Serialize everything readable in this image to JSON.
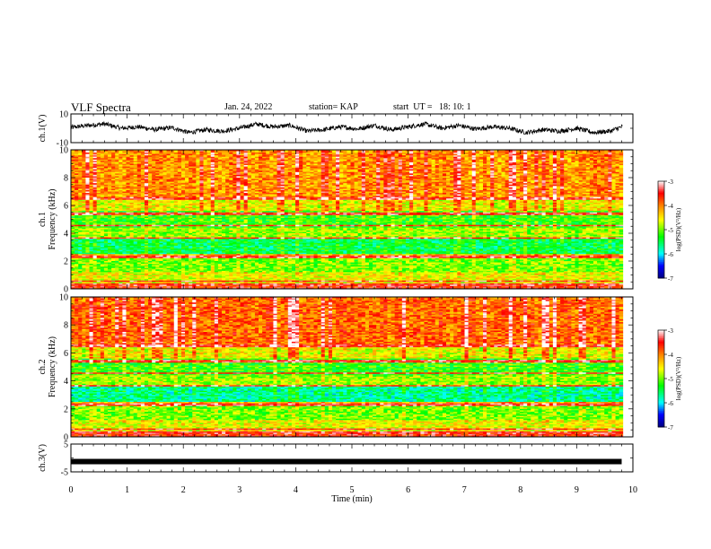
{
  "header": {
    "title": "VLF Spectra",
    "date": "Jan. 24, 2022",
    "station": "station= KAP",
    "start": "start  UT =   18: 10: 1"
  },
  "chart_data": [
    {
      "type": "line",
      "panel": "ch1-waveform",
      "ylabel": "ch.1(V)",
      "ylim": [
        -10,
        10
      ],
      "y_ticks": [
        "10",
        "-10"
      ],
      "xlim": [
        0,
        10
      ],
      "description_series": "noisy voltage trace oscillating roughly between -6 and 5 V",
      "series": [
        {
          "x": [
            0,
            0.3,
            0.6,
            0.9,
            1.2,
            1.5,
            1.8,
            2.1,
            2.4,
            2.7,
            3.0,
            3.3,
            3.6,
            3.9,
            4.2,
            4.5,
            4.8,
            5.1,
            5.4,
            5.7,
            6.0,
            6.3,
            6.6,
            6.9,
            7.2,
            7.5,
            7.8,
            8.1,
            8.4,
            8.7,
            9.0,
            9.3,
            9.6,
            9.8
          ],
          "y": [
            0.5,
            2,
            3,
            0,
            1,
            -1,
            0.5,
            -3,
            -1,
            -2,
            0,
            3,
            1,
            2,
            -2,
            -1,
            1,
            -0.5,
            2,
            -1,
            1,
            3,
            0,
            2,
            -0.5,
            1,
            0,
            -3,
            -1,
            -2,
            0,
            -3,
            -2,
            1
          ]
        }
      ]
    },
    {
      "type": "heatmap",
      "panel": "ch1-spectrogram",
      "ylabel": "ch.1 Frequency (kHz)",
      "ylim": [
        0,
        10
      ],
      "xlim": [
        0,
        10
      ],
      "y_ticks": [
        "0",
        "2",
        "4",
        "6",
        "8",
        "10"
      ],
      "colorbar": {
        "label": "log(PSD)(V²/Hz)",
        "range": [
          -7,
          -3
        ],
        "ticks": [
          "-3",
          "-4",
          "-5",
          "-6",
          "-7"
        ]
      },
      "description_values": "log PSD mostly between -5 and -3; high (red/orange) at 6-10 kHz, lower (cyan/green) bands near 1.5-3.5 and 4.5-5.5 kHz, red horizontal lines near 0.3, 2.3, 3.6, 6.5 kHz"
    },
    {
      "type": "heatmap",
      "panel": "ch2-spectrogram",
      "ylabel": "ch.2 Frequency (kHz)",
      "ylim": [
        0,
        10
      ],
      "xlim": [
        0,
        10
      ],
      "y_ticks": [
        "0",
        "2",
        "4",
        "6",
        "8",
        "10"
      ],
      "colorbar": {
        "label": "log(PSD)(V²/Hz)",
        "range": [
          -7,
          -3
        ],
        "ticks": [
          "-3",
          "-4",
          "-5",
          "-6",
          "-7"
        ]
      },
      "description_values": "similar to ch.1 with stronger red above 6 kHz and bluer band near 2.5-3 kHz"
    },
    {
      "type": "line",
      "panel": "ch3-waveform",
      "ylabel": "ch.3(V)",
      "ylim": [
        -5,
        5
      ],
      "y_ticks": [
        "5",
        "-5"
      ],
      "xlim": [
        0,
        10
      ],
      "xlabel": "Time  (min)",
      "x_ticks": [
        "0",
        "1",
        "2",
        "3",
        "4",
        "5",
        "6",
        "7",
        "8",
        "9",
        "10"
      ],
      "series": [
        {
          "x": [
            0,
            9.8
          ],
          "y": [
            -1.3,
            -1.3
          ]
        }
      ]
    }
  ],
  "colors": {
    "axis": "#000000",
    "colormap": [
      "#000080",
      "#0000ff",
      "#00ffff",
      "#00ff00",
      "#ffff00",
      "#ff8000",
      "#ff0000",
      "#ffffff"
    ]
  }
}
